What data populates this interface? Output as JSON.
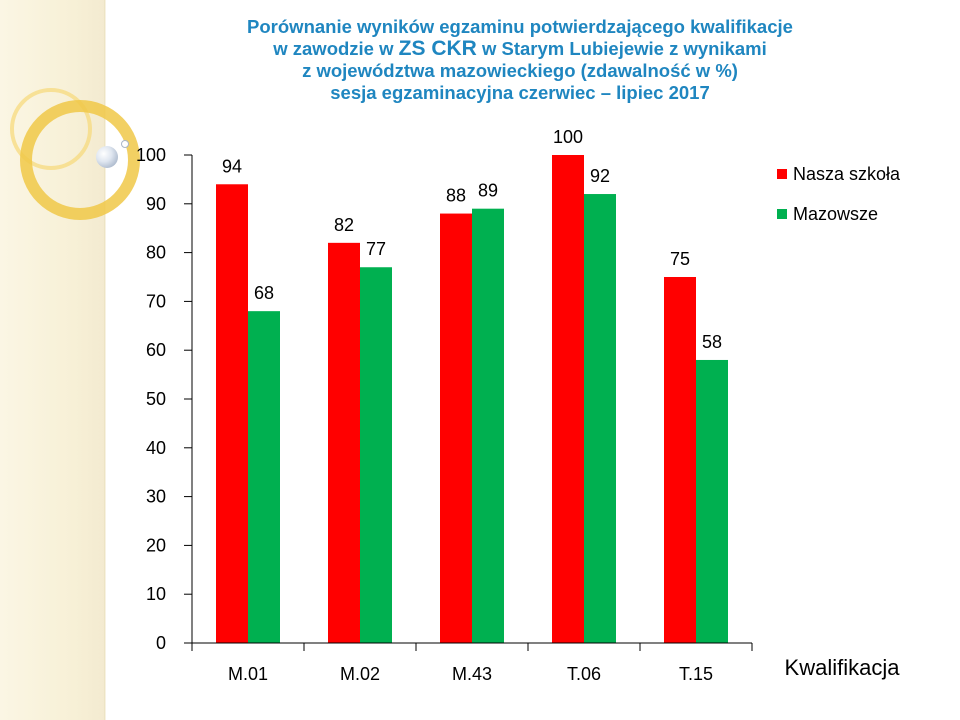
{
  "title_lines": [
    "Porównanie wyników egzaminu potwierdzającego kwalifikacje",
    "w zawodzie w ZS CKR w Starym Lubiejewie z wynikami",
    "z województwa mazowieckiego (zdawalność w %)",
    "sesja egzaminacyjna czerwiec – lipiec 2017"
  ],
  "chart_data": {
    "type": "bar",
    "title": "Porównanie wyników egzaminu potwierdzającego kwalifikacje w zawodzie w ZS CKR w Starym Lubiejewie z wynikami z województwa mazowieckiego (zdawalność w %) sesja egzaminacyjna czerwiec – lipiec 2017",
    "categories": [
      "M.01",
      "M.02",
      "M.43",
      "T.06",
      "T.15"
    ],
    "series": [
      {
        "name": "Nasza szkoła",
        "values": [
          94,
          82,
          88,
          100,
          75
        ],
        "color": "#ff0000"
      },
      {
        "name": "Mazowsze",
        "values": [
          68,
          77,
          89,
          92,
          58
        ],
        "color": "#00b050"
      }
    ],
    "xlabel": "Kwalifikacja",
    "ylabel": "",
    "ylim": [
      0,
      100
    ],
    "yticks": [
      0,
      10,
      20,
      30,
      40,
      50,
      60,
      70,
      80,
      90,
      100
    ],
    "grid": false,
    "legend": "right",
    "data_labels": true
  }
}
